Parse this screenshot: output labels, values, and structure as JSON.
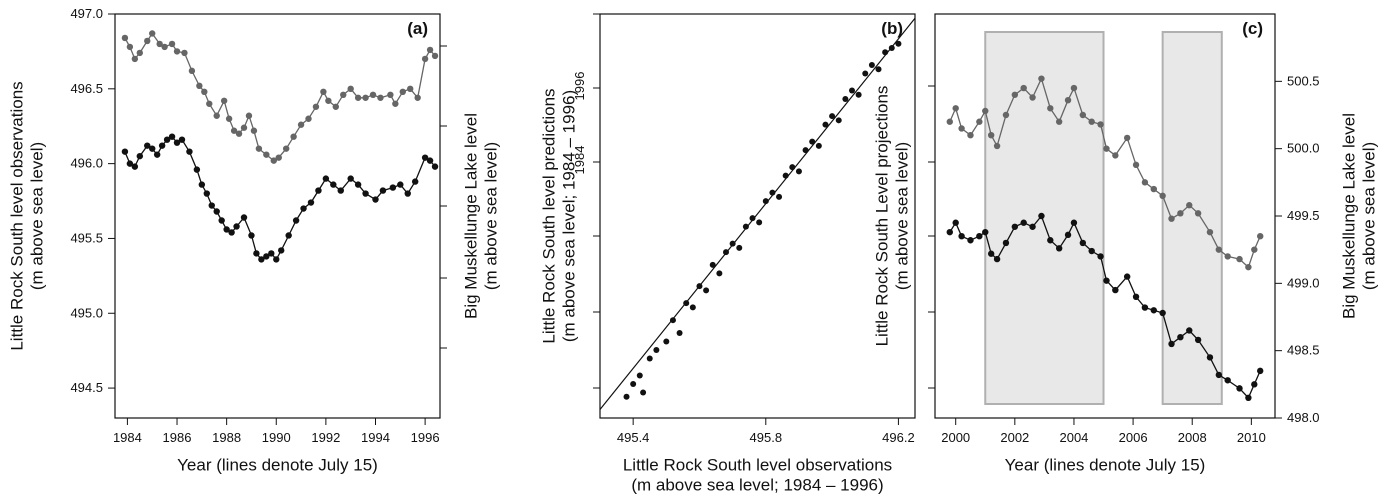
{
  "chart_data": [
    {
      "type": "line",
      "panel_label": "(a)",
      "xlabel": "Year (lines denote July 15)",
      "ylabel": "Little Rock South level observations\n(m above sea level)",
      "y2label": "Big Muskellunge Lake level\n(m above sea level)",
      "xlim": [
        1983.5,
        1996.6
      ],
      "ylim": [
        494.3,
        497.0
      ],
      "x_ticks": [
        "1984",
        "1986",
        "1988",
        "1990",
        "1992",
        "1994",
        "1996"
      ],
      "y_ticks": [
        "494.5",
        "495.0",
        "495.5",
        "496.0",
        "496.5",
        "497.0"
      ],
      "y2_tick_labels": [],
      "series": [
        {
          "color": "#666666",
          "points": [
            [
              1983.9,
              496.84
            ],
            [
              1984.1,
              496.78
            ],
            [
              1984.3,
              496.7
            ],
            [
              1984.5,
              496.74
            ],
            [
              1984.8,
              496.82
            ],
            [
              1985.0,
              496.87
            ],
            [
              1985.3,
              496.8
            ],
            [
              1985.5,
              496.78
            ],
            [
              1985.8,
              496.8
            ],
            [
              1986.0,
              496.75
            ],
            [
              1986.3,
              496.74
            ],
            [
              1986.6,
              496.62
            ],
            [
              1986.9,
              496.52
            ],
            [
              1987.1,
              496.48
            ],
            [
              1987.3,
              496.4
            ],
            [
              1987.6,
              496.32
            ],
            [
              1987.9,
              496.42
            ],
            [
              1988.1,
              496.3
            ],
            [
              1988.3,
              496.22
            ],
            [
              1988.5,
              496.2
            ],
            [
              1988.7,
              496.24
            ],
            [
              1988.9,
              496.32
            ],
            [
              1989.1,
              496.22
            ],
            [
              1989.3,
              496.1
            ],
            [
              1989.6,
              496.06
            ],
            [
              1989.9,
              496.02
            ],
            [
              1990.1,
              496.04
            ],
            [
              1990.4,
              496.1
            ],
            [
              1990.7,
              496.18
            ],
            [
              1991.0,
              496.26
            ],
            [
              1991.3,
              496.3
            ],
            [
              1991.6,
              496.38
            ],
            [
              1991.9,
              496.48
            ],
            [
              1992.1,
              496.42
            ],
            [
              1992.4,
              496.38
            ],
            [
              1992.7,
              496.46
            ],
            [
              1993.0,
              496.5
            ],
            [
              1993.3,
              496.44
            ],
            [
              1993.6,
              496.44
            ],
            [
              1993.9,
              496.46
            ],
            [
              1994.2,
              496.44
            ],
            [
              1994.6,
              496.46
            ],
            [
              1994.8,
              496.4
            ],
            [
              1995.1,
              496.48
            ],
            [
              1995.4,
              496.5
            ],
            [
              1995.7,
              496.44
            ],
            [
              1996.0,
              496.7
            ],
            [
              1996.2,
              496.76
            ],
            [
              1996.4,
              496.72
            ]
          ]
        },
        {
          "color": "#111111",
          "points": [
            [
              1983.9,
              496.08
            ],
            [
              1984.1,
              496.0
            ],
            [
              1984.3,
              495.98
            ],
            [
              1984.5,
              496.05
            ],
            [
              1984.8,
              496.12
            ],
            [
              1985.0,
              496.1
            ],
            [
              1985.2,
              496.06
            ],
            [
              1985.4,
              496.12
            ],
            [
              1985.6,
              496.16
            ],
            [
              1985.8,
              496.18
            ],
            [
              1986.0,
              496.14
            ],
            [
              1986.2,
              496.16
            ],
            [
              1986.5,
              496.08
            ],
            [
              1986.8,
              495.96
            ],
            [
              1987.0,
              495.86
            ],
            [
              1987.2,
              495.8
            ],
            [
              1987.4,
              495.72
            ],
            [
              1987.6,
              495.68
            ],
            [
              1987.8,
              495.62
            ],
            [
              1988.0,
              495.56
            ],
            [
              1988.2,
              495.54
            ],
            [
              1988.4,
              495.58
            ],
            [
              1988.7,
              495.64
            ],
            [
              1989.0,
              495.52
            ],
            [
              1989.2,
              495.4
            ],
            [
              1989.4,
              495.36
            ],
            [
              1989.6,
              495.38
            ],
            [
              1989.8,
              495.4
            ],
            [
              1990.0,
              495.36
            ],
            [
              1990.2,
              495.42
            ],
            [
              1990.5,
              495.52
            ],
            [
              1990.8,
              495.62
            ],
            [
              1991.1,
              495.7
            ],
            [
              1991.4,
              495.74
            ],
            [
              1991.7,
              495.82
            ],
            [
              1992.0,
              495.9
            ],
            [
              1992.3,
              495.86
            ],
            [
              1992.6,
              495.82
            ],
            [
              1993.0,
              495.9
            ],
            [
              1993.3,
              495.86
            ],
            [
              1993.6,
              495.8
            ],
            [
              1994.0,
              495.76
            ],
            [
              1994.3,
              495.82
            ],
            [
              1994.7,
              495.84
            ],
            [
              1995.0,
              495.86
            ],
            [
              1995.3,
              495.8
            ],
            [
              1995.6,
              495.88
            ],
            [
              1996.0,
              496.04
            ],
            [
              1996.2,
              496.02
            ],
            [
              1996.4,
              495.98
            ]
          ]
        }
      ]
    },
    {
      "type": "scatter",
      "panel_label": "(b)",
      "xlabel": "Little Rock South level observations\n(m above sea level; 1984 – 1996)",
      "ylabel": "Little Rock South level predictions\n(m above sea level; 1984 – 1996)",
      "xlim": [
        495.3,
        496.25
      ],
      "ylim": [
        495.3,
        496.25
      ],
      "x_ticks": [
        "495.4",
        "495.8",
        "496.2"
      ],
      "y_ticks": [
        "1984",
        "1996"
      ],
      "fit_line": [
        [
          495.3,
          495.32
        ],
        [
          496.25,
          496.24
        ]
      ],
      "points": [
        [
          495.38,
          495.35
        ],
        [
          495.4,
          495.38
        ],
        [
          495.42,
          495.4
        ],
        [
          495.43,
          495.36
        ],
        [
          495.45,
          495.44
        ],
        [
          495.47,
          495.46
        ],
        [
          495.5,
          495.48
        ],
        [
          495.52,
          495.53
        ],
        [
          495.54,
          495.5
        ],
        [
          495.56,
          495.57
        ],
        [
          495.58,
          495.56
        ],
        [
          495.6,
          495.61
        ],
        [
          495.62,
          495.6
        ],
        [
          495.64,
          495.66
        ],
        [
          495.66,
          495.64
        ],
        [
          495.68,
          495.69
        ],
        [
          495.7,
          495.71
        ],
        [
          495.72,
          495.7
        ],
        [
          495.74,
          495.75
        ],
        [
          495.76,
          495.77
        ],
        [
          495.78,
          495.76
        ],
        [
          495.8,
          495.81
        ],
        [
          495.82,
          495.83
        ],
        [
          495.84,
          495.82
        ],
        [
          495.86,
          495.87
        ],
        [
          495.88,
          495.89
        ],
        [
          495.9,
          495.88
        ],
        [
          495.92,
          495.93
        ],
        [
          495.94,
          495.95
        ],
        [
          495.96,
          495.94
        ],
        [
          495.98,
          495.99
        ],
        [
          496.0,
          496.01
        ],
        [
          496.02,
          496.0
        ],
        [
          496.04,
          496.05
        ],
        [
          496.06,
          496.07
        ],
        [
          496.08,
          496.06
        ],
        [
          496.1,
          496.11
        ],
        [
          496.12,
          496.13
        ],
        [
          496.14,
          496.12
        ],
        [
          496.16,
          496.16
        ],
        [
          496.18,
          496.17
        ],
        [
          496.2,
          496.18
        ]
      ]
    },
    {
      "type": "line",
      "panel_label": "(c)",
      "xlabel": "Year (lines denote July 15)",
      "ylabel": "Little Rock South Level projections\n(m above sea level)",
      "y2label": "Big Muskellunge Lake level\n(m above sea level)",
      "xlim": [
        1999.3,
        2010.8
      ],
      "y2lim": [
        498.0,
        501.0
      ],
      "x_ticks": [
        "2000",
        "2002",
        "2004",
        "2006",
        "2008",
        "2010"
      ],
      "y_ticks": [],
      "y2_ticks": [
        "498.0",
        "498.5",
        "499.0",
        "499.5",
        "500.0",
        "500.5"
      ],
      "shaded_periods": [
        [
          2001.0,
          2005.0
        ],
        [
          2007.0,
          2009.0
        ]
      ],
      "series": [
        {
          "color": "#666666",
          "points": [
            [
              1999.8,
              500.2
            ],
            [
              2000.0,
              500.3
            ],
            [
              2000.2,
              500.15
            ],
            [
              2000.5,
              500.1
            ],
            [
              2000.8,
              500.2
            ],
            [
              2001.0,
              500.28
            ],
            [
              2001.2,
              500.1
            ],
            [
              2001.4,
              500.02
            ],
            [
              2001.7,
              500.25
            ],
            [
              2002.0,
              500.4
            ],
            [
              2002.3,
              500.45
            ],
            [
              2002.6,
              500.38
            ],
            [
              2002.9,
              500.52
            ],
            [
              2003.2,
              500.3
            ],
            [
              2003.5,
              500.2
            ],
            [
              2003.8,
              500.36
            ],
            [
              2004.0,
              500.45
            ],
            [
              2004.3,
              500.25
            ],
            [
              2004.6,
              500.2
            ],
            [
              2004.9,
              500.18
            ],
            [
              2005.1,
              500.0
            ],
            [
              2005.4,
              499.95
            ],
            [
              2005.8,
              500.08
            ],
            [
              2006.1,
              499.88
            ],
            [
              2006.4,
              499.75
            ],
            [
              2006.7,
              499.7
            ],
            [
              2007.0,
              499.65
            ],
            [
              2007.3,
              499.48
            ],
            [
              2007.6,
              499.52
            ],
            [
              2007.9,
              499.58
            ],
            [
              2008.2,
              499.52
            ],
            [
              2008.6,
              499.38
            ],
            [
              2008.9,
              499.25
            ],
            [
              2009.2,
              499.2
            ],
            [
              2009.6,
              499.18
            ],
            [
              2009.9,
              499.12
            ],
            [
              2010.1,
              499.25
            ],
            [
              2010.3,
              499.35
            ]
          ]
        },
        {
          "color": "#111111",
          "points": [
            [
              1999.8,
              499.38
            ],
            [
              2000.0,
              499.45
            ],
            [
              2000.2,
              499.35
            ],
            [
              2000.5,
              499.32
            ],
            [
              2000.8,
              499.35
            ],
            [
              2001.0,
              499.38
            ],
            [
              2001.2,
              499.22
            ],
            [
              2001.4,
              499.18
            ],
            [
              2001.7,
              499.3
            ],
            [
              2002.0,
              499.42
            ],
            [
              2002.3,
              499.45
            ],
            [
              2002.6,
              499.42
            ],
            [
              2002.9,
              499.5
            ],
            [
              2003.2,
              499.32
            ],
            [
              2003.5,
              499.26
            ],
            [
              2003.8,
              499.36
            ],
            [
              2004.0,
              499.45
            ],
            [
              2004.3,
              499.3
            ],
            [
              2004.6,
              499.24
            ],
            [
              2004.9,
              499.2
            ],
            [
              2005.1,
              499.02
            ],
            [
              2005.4,
              498.95
            ],
            [
              2005.8,
              499.05
            ],
            [
              2006.1,
              498.9
            ],
            [
              2006.4,
              498.82
            ],
            [
              2006.7,
              498.8
            ],
            [
              2007.0,
              498.78
            ],
            [
              2007.3,
              498.55
            ],
            [
              2007.6,
              498.6
            ],
            [
              2007.9,
              498.65
            ],
            [
              2008.2,
              498.58
            ],
            [
              2008.6,
              498.45
            ],
            [
              2008.9,
              498.32
            ],
            [
              2009.2,
              498.28
            ],
            [
              2009.6,
              498.22
            ],
            [
              2009.9,
              498.15
            ],
            [
              2010.1,
              498.25
            ],
            [
              2010.3,
              498.35
            ]
          ]
        }
      ]
    }
  ]
}
